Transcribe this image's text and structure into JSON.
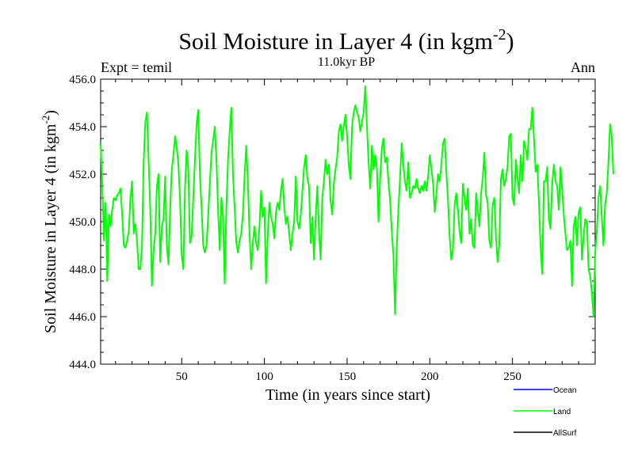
{
  "chart_data": {
    "type": "line",
    "title": "Soil Moisture in Layer 4 (in kgm",
    "title_sup": "-2",
    "title_close": ")",
    "subtitle": "11.0kyr BP",
    "left_label": "Expt = temil",
    "right_label": "Ann",
    "xlabel": "Time (in years since start)",
    "ylabel": "Soil Moisture in Layer 4 (in kgm",
    "ylabel_sup": "-2",
    "ylabel_close": ")",
    "xlim": [
      1,
      300
    ],
    "ylim": [
      444.0,
      456.0
    ],
    "x_ticks": [
      50,
      100,
      150,
      200,
      250
    ],
    "y_ticks": [
      "444.0",
      "446.0",
      "448.0",
      "450.0",
      "452.0",
      "454.0",
      "456.0"
    ],
    "grid": false,
    "legend_position": "bottom-right",
    "legend": [
      {
        "name": "Ocean",
        "color": "#0000ff"
      },
      {
        "name": "Land",
        "color": "#00ff00"
      },
      {
        "name": "AllSurf",
        "color": "#000000"
      }
    ],
    "series": [
      {
        "name": "Land",
        "color": "#00ff00",
        "x_start": 1,
        "x_step": 1,
        "values": [
          453.3,
          451.5,
          449.2,
          450.8,
          447.5,
          450.3,
          449.8,
          450.5,
          451.0,
          450.9,
          451.1,
          451.2,
          451.4,
          450.3,
          449.0,
          448.9,
          449.2,
          449.6,
          451.0,
          451.7,
          449.5,
          449.9,
          449.2,
          448.0,
          448.0,
          449.0,
          452.5,
          454.2,
          454.6,
          452.6,
          450.5,
          447.3,
          448.8,
          449.5,
          451.5,
          452.0,
          448.3,
          449.8,
          450.1,
          451.9,
          449.0,
          448.2,
          450.5,
          452.2,
          452.8,
          453.6,
          453.1,
          452.4,
          450.9,
          448.6,
          448.0,
          451.4,
          453.0,
          452.2,
          449.1,
          449.4,
          451.0,
          452.6,
          454.1,
          454.7,
          452.0,
          450.6,
          449.0,
          448.7,
          449.0,
          450.2,
          451.6,
          452.9,
          453.4,
          454.0,
          452.6,
          450.5,
          448.8,
          451.0,
          450.2,
          447.4,
          450.6,
          452.6,
          453.8,
          454.8,
          452.0,
          450.6,
          449.1,
          448.7,
          449.2,
          449.5,
          450.3,
          451.9,
          453.2,
          451.7,
          449.5,
          448.0,
          449.1,
          449.8,
          449.1,
          448.8,
          449.8,
          451.3,
          450.2,
          450.6,
          447.4,
          449.4,
          450.8,
          450.2,
          449.9,
          449.3,
          450.4,
          450.8,
          450.5,
          451.3,
          451.8,
          450.6,
          449.9,
          450.2,
          449.5,
          448.8,
          449.5,
          450.0,
          451.9,
          450.0,
          449.7,
          450.3,
          451.3,
          452.3,
          452.8,
          451.8,
          451.5,
          449.1,
          450.2,
          448.4,
          450.2,
          451.5,
          449.6,
          448.4,
          451.0,
          451.7,
          452.6,
          452.0,
          452.4,
          450.9,
          450.3,
          451.6,
          452.2,
          452.7,
          453.8,
          454.1,
          453.4,
          454.0,
          454.5,
          453.6,
          452.4,
          451.8,
          454.0,
          454.6,
          454.9,
          454.6,
          454.4,
          453.8,
          454.2,
          454.6,
          455.7,
          454.0,
          452.5,
          451.4,
          453.2,
          452.2,
          452.8,
          452.3,
          450.0,
          451.8,
          453.1,
          453.5,
          452.5,
          452.7,
          451.7,
          450.9,
          449.6,
          448.6,
          446.1,
          448.9,
          450.5,
          451.8,
          453.3,
          452.4,
          451.7,
          451.3,
          452.5,
          451.0,
          451.2,
          451.5,
          451.4,
          451.8,
          451.4,
          451.2,
          451.5,
          451.3,
          451.7,
          451.3,
          451.9,
          452.8,
          452.2,
          451.6,
          450.4,
          451.2,
          452.0,
          451.7,
          452.4,
          453.3,
          453.5,
          452.1,
          450.9,
          449.4,
          448.4,
          448.8,
          450.7,
          451.2,
          450.5,
          449.6,
          449.1,
          451.6,
          451.0,
          450.5,
          451.4,
          449.5,
          450.1,
          449.0,
          448.9,
          451.2,
          450.5,
          449.8,
          451.2,
          451.8,
          452.9,
          451.1,
          450.8,
          449.2,
          448.9,
          450.7,
          451.0,
          449.4,
          448.3,
          449.0,
          451.8,
          452.2,
          451.5,
          451.8,
          452.3,
          453.6,
          453.7,
          451.0,
          450.7,
          452.6,
          451.9,
          451.2,
          452.8,
          451.7,
          453.4,
          453.1,
          452.6,
          453.9,
          453.9,
          454.8,
          453.5,
          452.1,
          452.4,
          450.8,
          448.9,
          447.8,
          451.7,
          451.7,
          452.3,
          450.1,
          449.7,
          451.6,
          452.4,
          451.7,
          451.5,
          450.5,
          452.3,
          451.4,
          450.3,
          449.5,
          448.8,
          448.9,
          449.2,
          447.3,
          449.8,
          450.2,
          449.0,
          450.4,
          450.6,
          448.4,
          449.4,
          450.1,
          450.0,
          448.0,
          447.7,
          447.0,
          446.0,
          448.7,
          449.6,
          451.0,
          451.5,
          450.2,
          449.0,
          450.7,
          451.2,
          452.5,
          454.1,
          453.6,
          452.0
        ]
      }
    ]
  }
}
